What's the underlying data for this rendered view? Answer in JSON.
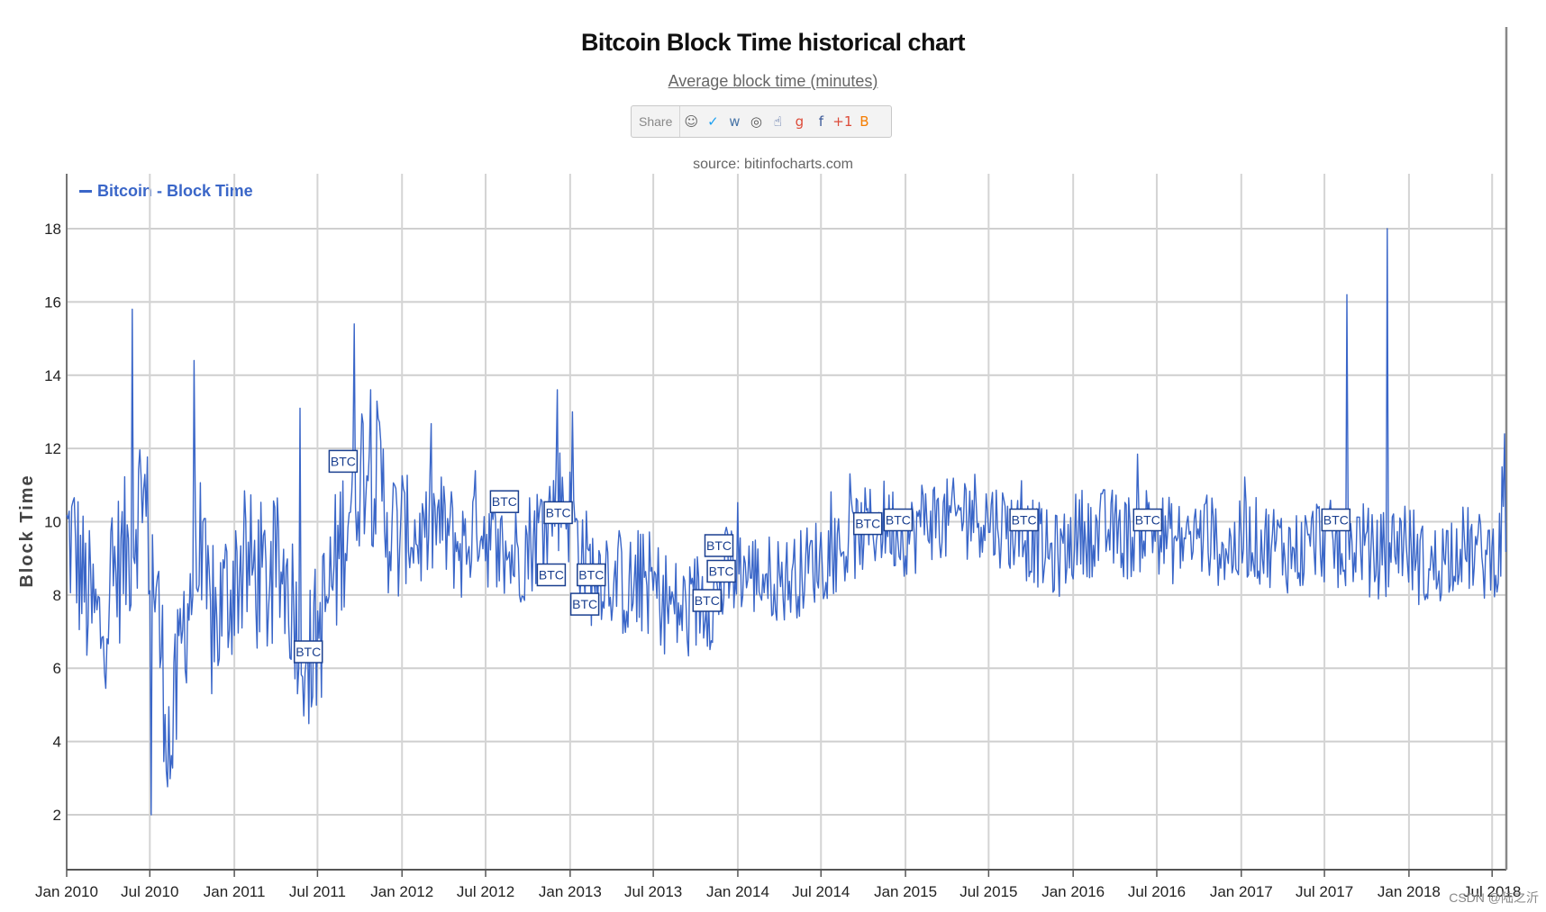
{
  "header": {
    "title": "Bitcoin Block Time historical chart",
    "subtitle": "Average block time (minutes)",
    "source": "source: bitinfocharts.com"
  },
  "share": {
    "label": "Share",
    "buttons": [
      {
        "icon": "reddit-icon",
        "glyph": "☺",
        "color": "#666666"
      },
      {
        "icon": "twitter-icon",
        "glyph": "✓",
        "color": "#1da1f2"
      },
      {
        "icon": "vk-icon",
        "glyph": "ᴡ",
        "color": "#4a76a8"
      },
      {
        "icon": "weibo-icon",
        "glyph": "◎",
        "color": "#555555"
      },
      {
        "icon": "like-icon",
        "glyph": "☝",
        "color": "#3b5998"
      },
      {
        "icon": "google-icon",
        "glyph": "g",
        "color": "#dd4b39"
      },
      {
        "icon": "facebook-icon",
        "glyph": "f",
        "color": "#3b5998"
      },
      {
        "icon": "google-plus-one-icon",
        "glyph": "+1",
        "color": "#dd4b39"
      },
      {
        "icon": "blogger-icon",
        "glyph": "B",
        "color": "#f57d00"
      }
    ]
  },
  "watermark": "CSDN @陆之沂",
  "chart_data": {
    "type": "line",
    "title": "Bitcoin Block Time historical chart",
    "subtitle": "Average block time (minutes)",
    "ylabel": "Block Time",
    "xlabel": "",
    "ylim": [
      0.5,
      19.5
    ],
    "yticks": [
      2,
      4,
      6,
      8,
      10,
      12,
      14,
      16,
      18
    ],
    "xlim": [
      "2010-01-01",
      "2018-08-01"
    ],
    "xticks": [
      "Jan 2010",
      "Jul 2010",
      "Jan 2011",
      "Jul 2011",
      "Jan 2012",
      "Jul 2012",
      "Jan 2013",
      "Jul 2013",
      "Jan 2014",
      "Jul 2014",
      "Jan 2015",
      "Jul 2015",
      "Jan 2016",
      "Jul 2016",
      "Jan 2017",
      "Jul 2017",
      "Jan 2018",
      "Jul 2018"
    ],
    "grid": true,
    "legend_position": "top-left",
    "line_color": "#3a66c8",
    "series": [
      {
        "name": "Bitcoin - Block Time",
        "x": [
          "2010-01",
          "2010-02",
          "2010-03",
          "2010-04",
          "2010-05",
          "2010-06",
          "2010-07",
          "2010-08",
          "2010-09",
          "2010-10",
          "2010-11",
          "2010-12",
          "2011-01",
          "2011-02",
          "2011-03",
          "2011-04",
          "2011-05",
          "2011-06",
          "2011-07",
          "2011-08",
          "2011-09",
          "2011-10",
          "2011-11",
          "2011-12",
          "2012-01",
          "2012-02",
          "2012-03",
          "2012-04",
          "2012-05",
          "2012-06",
          "2012-07",
          "2012-08",
          "2012-09",
          "2012-10",
          "2012-11",
          "2012-12",
          "2013-01",
          "2013-02",
          "2013-03",
          "2013-04",
          "2013-05",
          "2013-06",
          "2013-07",
          "2013-08",
          "2013-09",
          "2013-10",
          "2013-11",
          "2013-12",
          "2014-01",
          "2014-02",
          "2014-03",
          "2014-04",
          "2014-05",
          "2014-06",
          "2014-07",
          "2014-08",
          "2014-09",
          "2014-10",
          "2014-11",
          "2014-12",
          "2015-01",
          "2015-02",
          "2015-03",
          "2015-04",
          "2015-05",
          "2015-06",
          "2015-07",
          "2015-08",
          "2015-09",
          "2015-10",
          "2015-11",
          "2015-12",
          "2016-01",
          "2016-02",
          "2016-03",
          "2016-04",
          "2016-05",
          "2016-06",
          "2016-07",
          "2016-08",
          "2016-09",
          "2016-10",
          "2016-11",
          "2016-12",
          "2017-01",
          "2017-02",
          "2017-03",
          "2017-04",
          "2017-05",
          "2017-06",
          "2017-07",
          "2017-08",
          "2017-09",
          "2017-10",
          "2017-11",
          "2017-12",
          "2018-01",
          "2018-02",
          "2018-03",
          "2018-04",
          "2018-05",
          "2018-06",
          "2018-07",
          "2018-08"
        ],
        "values": [
          9.5,
          7.8,
          7.0,
          8.6,
          9.2,
          11.0,
          8.0,
          3.5,
          7.5,
          8.8,
          7.0,
          8.0,
          8.8,
          8.6,
          8.2,
          8.7,
          7.6,
          6.2,
          7.5,
          9.0,
          11.0,
          11.8,
          11.0,
          9.5,
          9.8,
          9.5,
          10.0,
          9.6,
          9.2,
          10.2,
          9.4,
          9.0,
          9.2,
          9.6,
          10.2,
          10.8,
          9.6,
          8.6,
          8.8,
          8.4,
          8.1,
          8.4,
          8.0,
          7.6,
          7.5,
          8.0,
          8.0,
          8.6,
          8.7,
          8.5,
          8.5,
          8.4,
          8.6,
          8.9,
          9.2,
          9.2,
          9.6,
          9.8,
          10.0,
          9.8,
          9.6,
          10.2,
          10.0,
          10.0,
          10.4,
          10.2,
          10.0,
          9.8,
          9.6,
          9.4,
          9.0,
          9.2,
          9.8,
          9.6,
          9.8,
          9.6,
          9.6,
          10.0,
          9.6,
          9.4,
          9.6,
          9.6,
          9.4,
          9.2,
          9.6,
          9.4,
          9.4,
          9.2,
          9.2,
          9.6,
          9.4,
          9.0,
          9.6,
          9.0,
          9.2,
          9.6,
          9.0,
          8.6,
          9.0,
          9.4,
          9.2,
          9.0,
          9.2,
          10.4
        ]
      }
    ],
    "spikes": [
      {
        "x": "2010-05-25",
        "y": 15.8
      },
      {
        "x": "2010-07-05",
        "y": 2.0
      },
      {
        "x": "2010-10-05",
        "y": 14.4
      },
      {
        "x": "2011-05-25",
        "y": 13.1
      },
      {
        "x": "2011-09-20",
        "y": 15.4
      },
      {
        "x": "2012-12-05",
        "y": 13.6
      },
      {
        "x": "2013-01-05",
        "y": 13.0
      },
      {
        "x": "2017-08-20",
        "y": 16.2
      },
      {
        "x": "2017-11-15",
        "y": 18.0
      },
      {
        "x": "2018-07-28",
        "y": 12.4
      }
    ],
    "annotations": [
      {
        "label": "BTC",
        "x": "2011-06-10",
        "y": 6.4
      },
      {
        "label": "BTC",
        "x": "2011-08-25",
        "y": 11.6
      },
      {
        "label": "BTC",
        "x": "2012-08-10",
        "y": 10.5
      },
      {
        "label": "BTC",
        "x": "2012-11-20",
        "y": 8.5
      },
      {
        "label": "BTC",
        "x": "2012-12-05",
        "y": 10.2
      },
      {
        "label": "BTC",
        "x": "2013-02-01",
        "y": 7.7
      },
      {
        "label": "BTC",
        "x": "2013-02-15",
        "y": 8.5
      },
      {
        "label": "BTC",
        "x": "2013-10-25",
        "y": 7.8
      },
      {
        "label": "BTC",
        "x": "2013-11-20",
        "y": 9.3
      },
      {
        "label": "BTC",
        "x": "2013-11-25",
        "y": 8.6
      },
      {
        "label": "BTC",
        "x": "2014-10-10",
        "y": 9.9
      },
      {
        "label": "BTC",
        "x": "2014-12-15",
        "y": 10.0
      },
      {
        "label": "BTC",
        "x": "2015-09-15",
        "y": 10.0
      },
      {
        "label": "BTC",
        "x": "2016-06-10",
        "y": 10.0
      },
      {
        "label": "BTC",
        "x": "2017-07-25",
        "y": 10.0
      }
    ]
  }
}
